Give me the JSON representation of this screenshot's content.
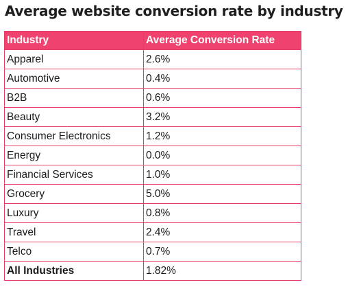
{
  "title": "Average website conversion rate by industry",
  "table": {
    "headers": [
      "Industry",
      "Average Conversion Rate"
    ],
    "rows": [
      {
        "industry": "Apparel",
        "rate": "2.6%"
      },
      {
        "industry": "Automotive",
        "rate": "0.4%"
      },
      {
        "industry": "B2B",
        "rate": "0.6%"
      },
      {
        "industry": "Beauty",
        "rate": "3.2%"
      },
      {
        "industry": "Consumer Electronics",
        "rate": "1.2%"
      },
      {
        "industry": "Energy",
        "rate": "0.0%"
      },
      {
        "industry": "Financial Services",
        "rate": "1.0%"
      },
      {
        "industry": "Grocery",
        "rate": "5.0%"
      },
      {
        "industry": "Luxury",
        "rate": "0.8%"
      },
      {
        "industry": "Travel",
        "rate": "2.4%"
      },
      {
        "industry": "Telco",
        "rate": "0.7%"
      }
    ],
    "total": {
      "industry": "All Industries",
      "rate": "1.82%"
    }
  },
  "colors": {
    "header_background": "#f0426e",
    "border": "#e83a68",
    "header_text": "#ffffff"
  }
}
